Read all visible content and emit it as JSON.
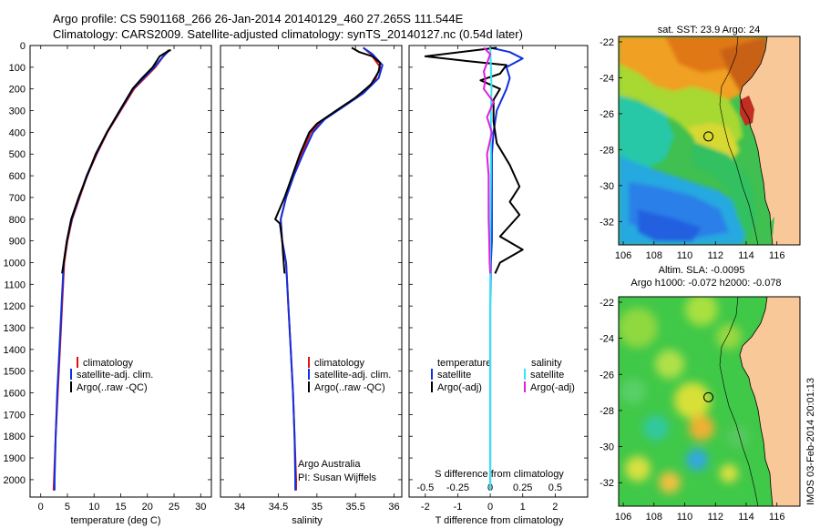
{
  "header": {
    "line1": "Argo profile: CS 5901168_266 26-Jan-2014 20140129_460 27.265S 111.544E",
    "line2": "Climatology: CARS2009. Satellite-adjusted climatology: synTS_20140127.nc (0.54d later)"
  },
  "colors": {
    "climatology": "#e01010",
    "satellite": "#1030e0",
    "argo": "#000000",
    "sat_salinity": "#30e8f0",
    "argo_salinity_adj": "#e020e0",
    "land": "#f8c898"
  },
  "depth_axis": {
    "ylim": [
      0,
      2080
    ],
    "ticks": [
      0,
      100,
      200,
      300,
      400,
      500,
      600,
      700,
      800,
      900,
      1000,
      1100,
      1200,
      1300,
      1400,
      1500,
      1600,
      1700,
      1800,
      1900,
      2000
    ]
  },
  "legend": {
    "climatology": "climatology",
    "satellite": "satellite-adj. clim.",
    "argo": "Argo(..raw -QC)",
    "temperature": "temperature",
    "salinity": "salinity",
    "satellite_short": "satellite",
    "argo_adj": "Argo(-adj)"
  },
  "annotations": {
    "argo_australia": "Argo Australia",
    "pi": "PI: Susan Wijffels",
    "s_diff_title": "S difference from climatology"
  },
  "credit": "IMOS 03-Feb-2014 20:01:13",
  "chart_data": [
    {
      "type": "line",
      "name": "temperature-profile",
      "xlabel": "temperature (deg C)",
      "ylabel": "",
      "xlim": [
        -2,
        32
      ],
      "xticks": [
        0,
        5,
        10,
        15,
        20,
        25,
        30
      ],
      "ylim": [
        2080,
        0
      ],
      "series": [
        {
          "name": "climatology",
          "color": "#e01010",
          "points": [
            [
              24,
              20
            ],
            [
              23,
              50
            ],
            [
              21.5,
              100
            ],
            [
              19.5,
              150
            ],
            [
              17.5,
              200
            ],
            [
              15,
              300
            ],
            [
              12.5,
              400
            ],
            [
              10.5,
              500
            ],
            [
              8.7,
              600
            ],
            [
              7.3,
              700
            ],
            [
              5.9,
              800
            ],
            [
              5,
              900
            ],
            [
              4.4,
              1000
            ],
            [
              4,
              1200
            ],
            [
              3.6,
              1400
            ],
            [
              3.2,
              1600
            ],
            [
              2.8,
              1800
            ],
            [
              2.5,
              2000
            ],
            [
              2.4,
              2050
            ]
          ]
        },
        {
          "name": "satellite-adj. clim.",
          "color": "#1030e0",
          "points": [
            [
              24.2,
              20
            ],
            [
              23,
              50
            ],
            [
              21.3,
              100
            ],
            [
              19.3,
              150
            ],
            [
              17.3,
              200
            ],
            [
              14.9,
              300
            ],
            [
              12.4,
              400
            ],
            [
              10.4,
              500
            ],
            [
              8.6,
              600
            ],
            [
              7.2,
              700
            ],
            [
              5.8,
              800
            ],
            [
              4.9,
              900
            ],
            [
              4.3,
              1000
            ],
            [
              3.9,
              1200
            ],
            [
              3.5,
              1400
            ],
            [
              3.1,
              1600
            ],
            [
              2.8,
              1800
            ],
            [
              2.6,
              2000
            ],
            [
              2.6,
              2050
            ]
          ]
        },
        {
          "name": "Argo(..raw -QC)",
          "color": "#000000",
          "points": [
            [
              24.4,
              20
            ],
            [
              23.6,
              30
            ],
            [
              22.3,
              50
            ],
            [
              21,
              100
            ],
            [
              19,
              150
            ],
            [
              17.2,
              200
            ],
            [
              14.8,
              300
            ],
            [
              12.4,
              400
            ],
            [
              10.3,
              500
            ],
            [
              8.7,
              600
            ],
            [
              7.1,
              700
            ],
            [
              5.7,
              800
            ],
            [
              4.9,
              900
            ],
            [
              4.3,
              1000
            ],
            [
              4,
              1050
            ]
          ]
        }
      ]
    },
    {
      "type": "line",
      "name": "salinity-profile",
      "xlabel": "salinity",
      "ylabel": "",
      "xlim": [
        33.75,
        36.1
      ],
      "xticks": [
        34,
        34.5,
        35,
        35.5,
        36
      ],
      "ylim": [
        2080,
        0
      ],
      "series": [
        {
          "name": "climatology",
          "color": "#e01010",
          "points": [
            [
              35.6,
              10
            ],
            [
              35.7,
              40
            ],
            [
              35.82,
              100
            ],
            [
              35.75,
              160
            ],
            [
              35.55,
              230
            ],
            [
              35.3,
              290
            ],
            [
              35.05,
              350
            ],
            [
              34.92,
              400
            ],
            [
              34.8,
              500
            ],
            [
              34.7,
              600
            ],
            [
              34.6,
              700
            ],
            [
              34.53,
              800
            ],
            [
              34.55,
              900
            ],
            [
              34.6,
              1000
            ],
            [
              34.63,
              1200
            ],
            [
              34.66,
              1400
            ],
            [
              34.69,
              1600
            ],
            [
              34.71,
              1800
            ],
            [
              34.73,
              2000
            ],
            [
              34.73,
              2050
            ]
          ]
        },
        {
          "name": "satellite-adj. clim.",
          "color": "#1030e0",
          "points": [
            [
              35.6,
              10
            ],
            [
              35.72,
              40
            ],
            [
              35.85,
              90
            ],
            [
              35.8,
              150
            ],
            [
              35.6,
              220
            ],
            [
              35.35,
              280
            ],
            [
              35.1,
              340
            ],
            [
              34.95,
              400
            ],
            [
              34.82,
              500
            ],
            [
              34.7,
              600
            ],
            [
              34.6,
              700
            ],
            [
              34.53,
              800
            ],
            [
              34.55,
              900
            ],
            [
              34.6,
              1000
            ],
            [
              34.63,
              1200
            ],
            [
              34.66,
              1400
            ],
            [
              34.69,
              1600
            ],
            [
              34.71,
              1800
            ],
            [
              34.72,
              2000
            ],
            [
              34.72,
              2050
            ]
          ]
        },
        {
          "name": "Argo(..raw -QC)",
          "color": "#000000",
          "points": [
            [
              35.45,
              10
            ],
            [
              35.55,
              30
            ],
            [
              35.72,
              50
            ],
            [
              35.82,
              80
            ],
            [
              35.8,
              120
            ],
            [
              35.7,
              180
            ],
            [
              35.5,
              240
            ],
            [
              35.25,
              300
            ],
            [
              35.0,
              360
            ],
            [
              34.9,
              400
            ],
            [
              34.78,
              500
            ],
            [
              34.68,
              600
            ],
            [
              34.58,
              700
            ],
            [
              34.46,
              800
            ],
            [
              34.52,
              820
            ],
            [
              34.55,
              900
            ],
            [
              34.57,
              1000
            ],
            [
              34.58,
              1050
            ]
          ]
        }
      ]
    },
    {
      "type": "line",
      "name": "difference-profile",
      "xlabel": "T difference from climatology",
      "ylabel": "",
      "xlim": [
        -2.5,
        3
      ],
      "xticks": [
        -2,
        -1,
        0,
        1,
        2
      ],
      "x2label": "S difference from climatology",
      "x2ticks_labels": [
        "-0.5",
        "-0.25",
        "0",
        "0.25",
        "0.5"
      ],
      "ylim": [
        2080,
        0
      ],
      "series": [
        {
          "name": "temperature satellite",
          "color": "#1030e0",
          "points": [
            [
              0,
              10
            ],
            [
              0.6,
              30
            ],
            [
              1.0,
              60
            ],
            [
              0.5,
              100
            ],
            [
              0.6,
              150
            ],
            [
              0.5,
              200
            ],
            [
              0.2,
              300
            ],
            [
              0.1,
              400
            ],
            [
              0.05,
              500
            ],
            [
              0.05,
              600
            ],
            [
              0.05,
              700
            ],
            [
              0.05,
              800
            ],
            [
              0.05,
              900
            ],
            [
              0.02,
              1000
            ],
            [
              0,
              1200
            ],
            [
              0,
              1400
            ],
            [
              0,
              1600
            ],
            [
              0,
              1800
            ],
            [
              0,
              2000
            ],
            [
              0,
              2050
            ]
          ]
        },
        {
          "name": "temperature Argo(-adj)",
          "color": "#000000",
          "points": [
            [
              0.2,
              10
            ],
            [
              -2,
              50
            ],
            [
              -0.8,
              70
            ],
            [
              0.5,
              90
            ],
            [
              0.3,
              130
            ],
            [
              -0.3,
              160
            ],
            [
              0.3,
              200
            ],
            [
              0.1,
              250
            ],
            [
              0.1,
              350
            ],
            [
              0.2,
              450
            ],
            [
              0.6,
              550
            ],
            [
              0.9,
              650
            ],
            [
              0.6,
              720
            ],
            [
              0.9,
              780
            ],
            [
              0.3,
              880
            ],
            [
              1.0,
              940
            ],
            [
              0.3,
              1000
            ],
            [
              0.15,
              1050
            ]
          ]
        },
        {
          "name": "salinity satellite",
          "color": "#30e8f0",
          "points": [
            [
              0,
              10
            ],
            [
              0.02,
              100
            ],
            [
              0.04,
              200
            ],
            [
              0.02,
              300
            ],
            [
              0.02,
              400
            ],
            [
              0.02,
              500
            ],
            [
              0.02,
              600
            ],
            [
              0.01,
              800
            ],
            [
              0,
              1000
            ],
            [
              0,
              1200
            ],
            [
              0,
              1400
            ],
            [
              0,
              1600
            ],
            [
              0,
              1800
            ],
            [
              0,
              2000
            ],
            [
              0,
              2050
            ]
          ]
        },
        {
          "name": "salinity Argo(-adj)",
          "color": "#e020e0",
          "points": [
            [
              -0.2,
              10
            ],
            [
              0,
              40
            ],
            [
              -0.1,
              80
            ],
            [
              -0.2,
              120
            ],
            [
              -0.15,
              160
            ],
            [
              -0.2,
              200
            ],
            [
              0.1,
              260
            ],
            [
              -0.1,
              330
            ],
            [
              0.05,
              400
            ],
            [
              -0.1,
              500
            ],
            [
              -0.05,
              600
            ],
            [
              -0.05,
              700
            ],
            [
              -0.05,
              800
            ],
            [
              -0.03,
              900
            ],
            [
              -0.02,
              1000
            ],
            [
              0,
              1050
            ]
          ]
        }
      ]
    },
    {
      "type": "heatmap",
      "name": "sst-map",
      "title": "sat. SST: 23.9 Argo: 24",
      "xticks": [
        106,
        108,
        110,
        112,
        114,
        116
      ],
      "yticks": [
        -22,
        -24,
        -26,
        -28,
        -30,
        -32
      ],
      "xlim": [
        105.7,
        117.5
      ],
      "ylim": [
        -33.3,
        -21.7
      ],
      "marker": {
        "lon": 111.544,
        "lat": -27.265
      }
    },
    {
      "type": "heatmap",
      "name": "sla-map",
      "title": "Altim. SLA: -0.0095",
      "subtitle": "Argo h1000: -0.072 h2000: -0.078",
      "xticks": [
        106,
        108,
        110,
        112,
        114,
        116
      ],
      "yticks": [
        -22,
        -24,
        -26,
        -28,
        -30,
        -32
      ],
      "xlim": [
        105.7,
        117.5
      ],
      "ylim": [
        -33.3,
        -21.7
      ],
      "marker": {
        "lon": 111.544,
        "lat": -27.265
      }
    }
  ]
}
